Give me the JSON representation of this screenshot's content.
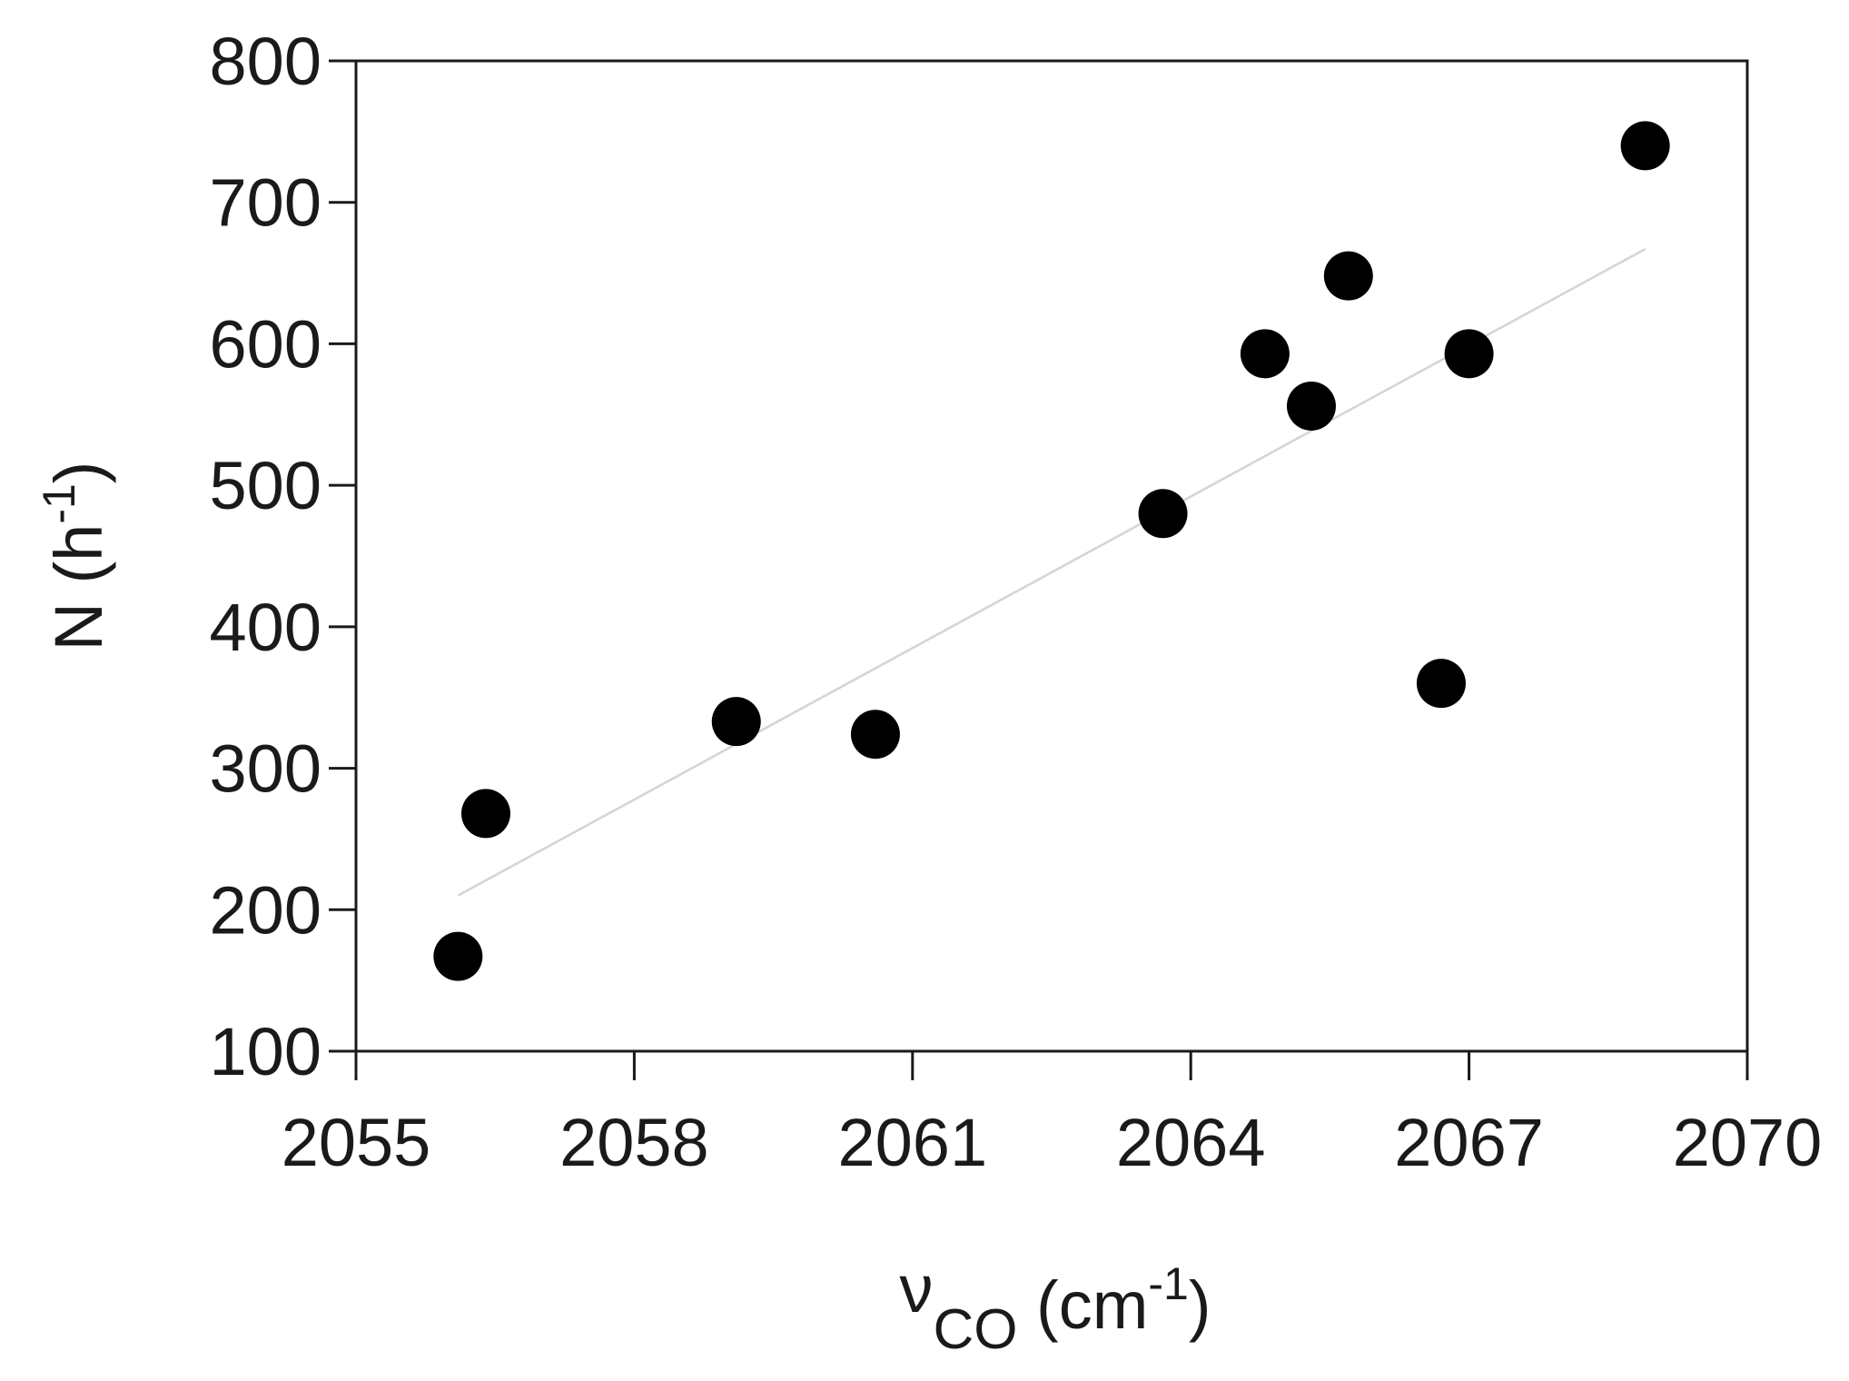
{
  "chart_data": {
    "type": "scatter",
    "title": "",
    "xlabel": {
      "symbol": "ν",
      "subscript": "CO",
      "unit_open": " (cm",
      "unit_sup": "-1",
      "unit_close": ")"
    },
    "ylabel": {
      "text": "N (h",
      "sup": "-1",
      "close": ")"
    },
    "xlim": [
      2055,
      2070
    ],
    "ylim": [
      100,
      800
    ],
    "xticks": [
      2055,
      2058,
      2061,
      2064,
      2067,
      2070
    ],
    "yticks": [
      100,
      200,
      300,
      400,
      500,
      600,
      700,
      800
    ],
    "grid": false,
    "legend": "none",
    "points": [
      {
        "x": 2056.1,
        "y": 167
      },
      {
        "x": 2056.4,
        "y": 268
      },
      {
        "x": 2059.1,
        "y": 333
      },
      {
        "x": 2060.6,
        "y": 324
      },
      {
        "x": 2063.7,
        "y": 480
      },
      {
        "x": 2064.8,
        "y": 593
      },
      {
        "x": 2065.3,
        "y": 556
      },
      {
        "x": 2065.7,
        "y": 648
      },
      {
        "x": 2066.7,
        "y": 360
      },
      {
        "x": 2067.0,
        "y": 593
      },
      {
        "x": 2068.9,
        "y": 740
      }
    ],
    "trendline": {
      "x": [
        2056.1,
        2068.9
      ],
      "y": [
        210,
        667
      ]
    },
    "colors": {
      "marker": "#000000",
      "trendline": "#d4d4d4",
      "axis": "#1a1a1a"
    }
  }
}
